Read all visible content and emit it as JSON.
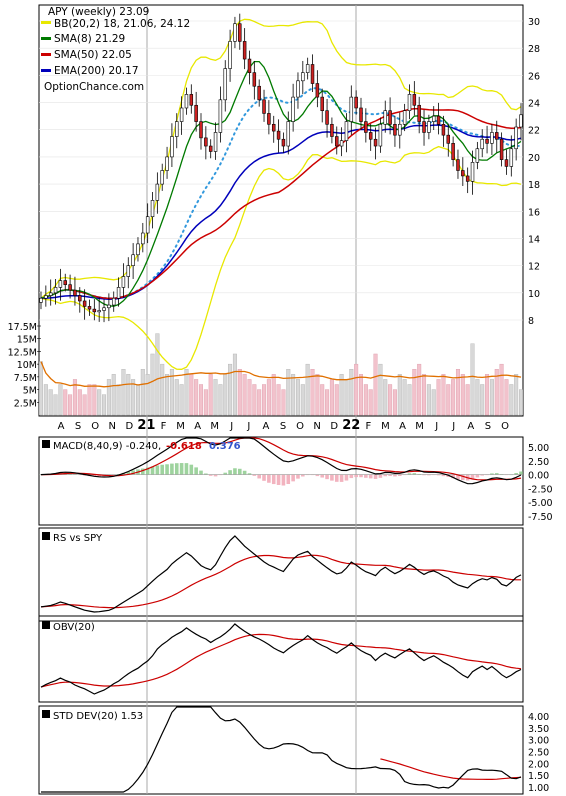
{
  "chart_data": {
    "type": "line",
    "header": {
      "title": "APY (weekly) 23.09",
      "legend": [
        {
          "label": "BB(20,2) 18, 21.06, 24.12",
          "color": "#e8e800"
        },
        {
          "label": "SMA(8) 21.29",
          "color": "#007a00"
        },
        {
          "label": "SMA(50) 22.05",
          "color": "#cc0000"
        },
        {
          "label": "EMA(200) 20.17",
          "color": "#0000bb"
        }
      ],
      "watermark": "OptionChance.com"
    },
    "x_labels": [
      "A",
      "S",
      "O",
      "N",
      "D",
      "21",
      "F",
      "M",
      "A",
      "M",
      "J",
      "J",
      "A",
      "S",
      "O",
      "N",
      "D",
      "22",
      "F",
      "M",
      "A",
      "M",
      "J",
      "J",
      "A",
      "S",
      "O"
    ],
    "price": {
      "y_ticks": [
        "30",
        "28",
        "26",
        "24",
        "22",
        "20",
        "18",
        "16",
        "14",
        "12",
        "10",
        "8"
      ],
      "ylim": [
        7,
        31
      ],
      "closes": [
        9.6,
        9.8,
        10.0,
        10.4,
        10.9,
        10.6,
        10.2,
        9.8,
        9.4,
        9.0,
        8.8,
        8.6,
        8.7,
        8.9,
        9.1,
        9.6,
        10.4,
        11.2,
        12.0,
        12.8,
        13.6,
        14.4,
        15.6,
        16.8,
        18.0,
        19.0,
        20.0,
        21.5,
        22.6,
        23.6,
        24.6,
        23.8,
        22.6,
        21.4,
        20.8,
        20.4,
        21.8,
        24.2,
        26.5,
        28.5,
        29.8,
        28.5,
        27.2,
        26.2,
        25.2,
        24.2,
        23.2,
        22.4,
        21.9,
        21.3,
        20.8,
        22.6,
        24.4,
        25.6,
        26.2,
        26.8,
        25.4,
        24.4,
        23.4,
        22.4,
        21.5,
        20.8,
        21.2,
        22.6,
        24.4,
        23.6,
        22.6,
        21.8,
        21.3,
        20.8,
        22.4,
        23.4,
        22.4,
        21.6,
        22.4,
        23.4,
        24.6,
        23.8,
        22.6,
        21.8,
        22.6,
        23.0,
        22.4,
        21.6,
        21.0,
        19.8,
        19.0,
        18.6,
        18.2,
        19.6,
        20.6,
        21.3,
        21.0,
        21.8,
        21.3,
        19.8,
        19.3,
        20.6,
        22.2,
        23.1
      ]
    },
    "volume": {
      "y_ticks": [
        "17.5M",
        "15M",
        "12.5M",
        "10M",
        "7.5M",
        "5M",
        "2.5M"
      ],
      "ylim": [
        0,
        17.5
      ],
      "values": [
        10.5,
        6,
        5,
        4,
        6,
        5,
        4,
        7,
        5,
        4,
        6,
        6,
        5,
        4,
        7,
        8,
        6,
        9,
        8,
        7,
        6,
        9,
        8,
        12,
        16,
        10,
        8,
        9,
        7,
        6,
        9,
        8,
        7,
        6,
        5,
        8,
        7,
        6,
        8,
        10,
        12,
        9,
        8,
        7,
        6,
        5,
        6,
        7,
        8,
        6,
        5,
        9,
        8,
        7,
        6,
        10,
        9,
        8,
        6,
        5,
        7,
        6,
        8,
        7,
        9,
        10,
        8,
        6,
        5,
        12,
        10,
        7,
        6,
        5,
        8,
        7,
        6,
        9,
        10,
        8,
        6,
        5,
        7,
        8,
        6,
        7,
        9,
        8,
        6,
        14,
        7,
        6,
        8,
        7,
        9,
        10,
        7,
        6,
        8,
        5
      ]
    },
    "macd": {
      "label": "MACD(8,40,9) -0.240,",
      "value_a": "-0.618",
      "value_b": "0.376",
      "y_ticks": [
        "5.00",
        "2.50",
        "0.00",
        "-2.50",
        "-5.00",
        "-7.50"
      ],
      "ylim": [
        -8.5,
        6.5
      ]
    },
    "rs": {
      "label": "RS vs SPY"
    },
    "obv": {
      "label": "OBV(20)"
    },
    "std": {
      "label": "STD DEV(20) 1.53",
      "y_ticks": [
        "4.00",
        "3.50",
        "3.00",
        "2.50",
        "2.00",
        "1.50",
        "1.00"
      ],
      "ylim": [
        0.7,
        4.1
      ]
    }
  }
}
